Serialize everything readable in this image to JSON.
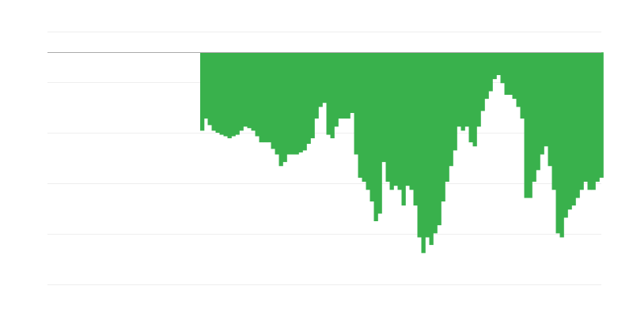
{
  "chart_data": {
    "type": "area",
    "title": "",
    "xlabel": "",
    "ylabel": "",
    "grid": true,
    "legend": "none",
    "color": "#39b14c",
    "baseline": 0,
    "xlim": [
      -39,
      101
    ],
    "ylim": [
      -45.9,
      4.1
    ],
    "gridlines": [
      4.06,
      -5.94,
      -15.94,
      -25.94,
      -35.94,
      -45.94
    ],
    "values": [
      -15.5,
      -13.1,
      -14.4,
      -15.5,
      -15.9,
      -16.3,
      -16.6,
      -17.0,
      -16.6,
      -16.3,
      -15.5,
      -14.7,
      -15.0,
      -15.5,
      -16.6,
      -17.8,
      -17.8,
      -17.8,
      -19.1,
      -20.2,
      -22.5,
      -21.7,
      -20.2,
      -20.2,
      -20.2,
      -19.8,
      -19.4,
      -18.1,
      -17.0,
      -13.1,
      -10.8,
      -10.0,
      -16.3,
      -17.0,
      -14.7,
      -13.1,
      -13.1,
      -13.1,
      -12.0,
      -20.2,
      -24.8,
      -25.6,
      -27.2,
      -29.5,
      -33.4,
      -31.9,
      -21.7,
      -25.6,
      -27.2,
      -26.4,
      -27.2,
      -30.3,
      -26.4,
      -27.2,
      -30.3,
      -36.6,
      -39.7,
      -36.6,
      -38.1,
      -35.8,
      -34.2,
      -29.5,
      -25.6,
      -22.5,
      -19.4,
      -14.7,
      -15.5,
      -14.7,
      -17.8,
      -18.6,
      -14.7,
      -11.6,
      -9.2,
      -7.7,
      -5.3,
      -4.5,
      -6.1,
      -8.4,
      -8.4,
      -9.2,
      -10.8,
      -13.1,
      -28.8,
      -28.8,
      -25.6,
      -23.3,
      -20.2,
      -18.6,
      -22.5,
      -27.2,
      -35.8,
      -36.6,
      -32.7,
      -31.1,
      -30.3,
      -28.8,
      -27.2,
      -25.6,
      -27.2,
      -27.2,
      -25.6,
      -24.8
    ]
  }
}
